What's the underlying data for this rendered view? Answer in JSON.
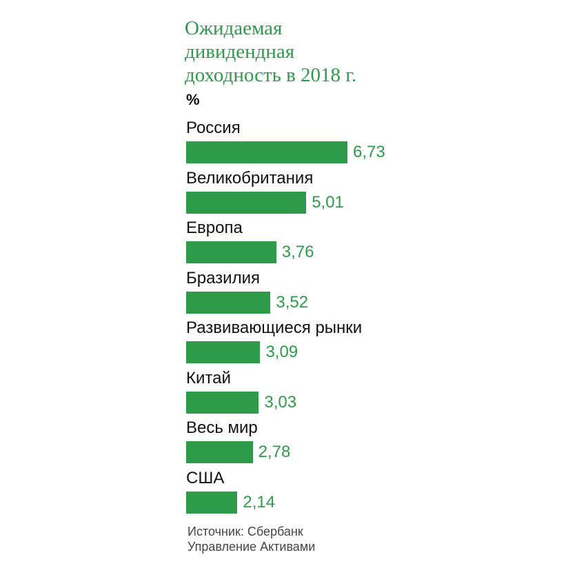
{
  "chart_data": {
    "type": "bar",
    "orientation": "horizontal",
    "title_lines": [
      "Ожидаемая",
      "дивидендная",
      "доходность в 2018 г."
    ],
    "unit": "%",
    "categories": [
      "Россия",
      "Великобритания",
      "Европа",
      "Бразилия",
      "Развивающиеся рынки",
      "Китай",
      "Весь мир",
      "США"
    ],
    "values": [
      6.73,
      5.01,
      3.76,
      3.52,
      3.09,
      3.03,
      2.78,
      2.14
    ],
    "value_labels": [
      "6,73",
      "5,01",
      "3,76",
      "3,52",
      "3,09",
      "3,03",
      "2,78",
      "2,14"
    ],
    "bar_color": "#2e9b4a",
    "xlim": [
      0,
      6.73
    ],
    "grid": false
  },
  "source_lines": [
    "Источник: Сбербанк",
    "Управление Активами"
  ]
}
